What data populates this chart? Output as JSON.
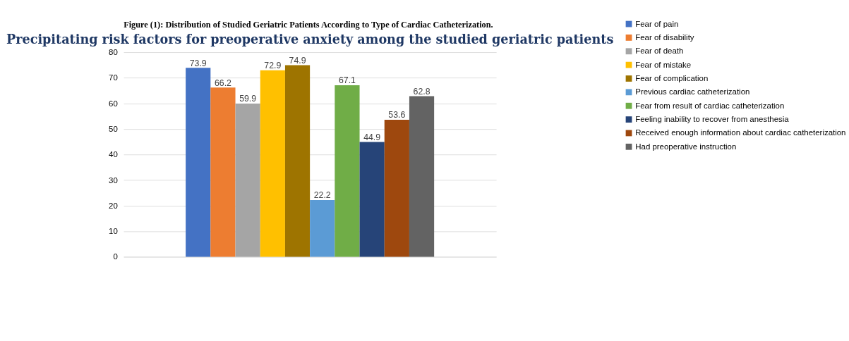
{
  "chart_data": {
    "type": "bar",
    "title": "Precipitating risk factors for preoperative anxiety among the studied geriatric patients",
    "annotations": [
      "Figure (1): Distribution of Studied Geriatric Patients According to Type of Cardiac Catheterization."
    ],
    "categories": [
      null
    ],
    "series": [
      {
        "name": "Fear of pain",
        "color": "#4472c4",
        "values": [
          73.9
        ]
      },
      {
        "name": "Fear of disability",
        "color": "#ed7d31",
        "values": [
          66.2
        ]
      },
      {
        "name": "Fear of death",
        "color": "#a5a5a5",
        "values": [
          59.9
        ]
      },
      {
        "name": "Fear of mistake",
        "color": "#ffc000",
        "values": [
          72.9
        ]
      },
      {
        "name": "Fear of complication",
        "color": "#9e7400",
        "values": [
          74.9
        ]
      },
      {
        "name": "Previous cardiac catheterization",
        "color": "#5b9bd5",
        "values": [
          22.2
        ]
      },
      {
        "name": "Fear from result of cardiac catheterization",
        "color": "#70ad47",
        "values": [
          67.1
        ]
      },
      {
        "name": "Feeling inability to recover from anesthesia",
        "color": "#264478",
        "values": [
          44.9
        ]
      },
      {
        "name": "Received enough information about cardiac catheterization",
        "color": "#9e480e",
        "values": [
          53.6
        ]
      },
      {
        "name": "Had preoperative instruction",
        "color": "#636363",
        "values": [
          62.8
        ]
      }
    ],
    "ylim": [
      0,
      80
    ],
    "yticks": [
      0,
      10,
      20,
      30,
      40,
      50,
      60,
      70,
      80
    ],
    "grid": "y",
    "legend": "right",
    "data_labels": true,
    "tick_labels": "y"
  }
}
